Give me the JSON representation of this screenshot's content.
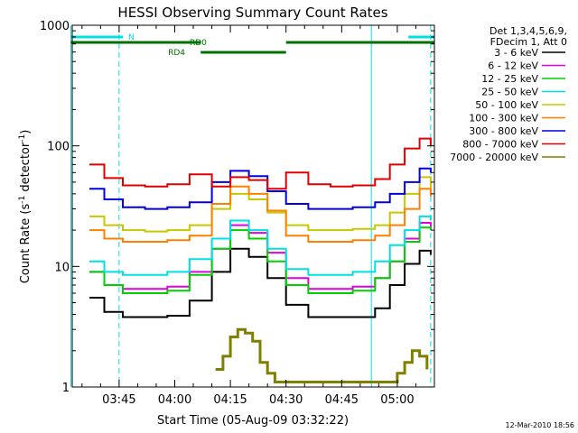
{
  "chart_data": {
    "type": "line",
    "title": "HESSI Observing Summary Count Rates",
    "xlabel": "Start Time (05-Aug-09 03:32:22)",
    "ylabel_main": "Count Rate (s",
    "ylabel_sup1": "-1",
    "ylabel_mid": " detector",
    "ylabel_sup2": "-1",
    "ylabel_end": ")",
    "y_scale": "log",
    "ylim": [
      1,
      1000
    ],
    "xlim": [
      "03:32:22",
      "05:10:00"
    ],
    "x_ticks": [
      "03:45",
      "04:00",
      "04:15",
      "04:30",
      "04:45",
      "05:00"
    ],
    "y_ticks": [
      "1",
      "10",
      "100",
      "1000"
    ],
    "legend_header": [
      "Det 1,3,4,5,6,9,",
      "FDecim 1, Att 0"
    ],
    "legend_position": "right",
    "footer_date": "12-Mar-2010 18:56",
    "flags": [
      {
        "label": "N",
        "color": "#00e0e0",
        "segments": [
          [
            "03:32",
            "03:46"
          ],
          [
            "05:03",
            "05:10"
          ]
        ]
      },
      {
        "label": "RD0",
        "color": "#007000",
        "segments": [
          [
            "03:32",
            "04:07"
          ],
          [
            "04:30",
            "05:10"
          ]
        ]
      },
      {
        "label": "RD4",
        "color": "#007000",
        "segments": [
          [
            "04:07",
            "04:30"
          ]
        ]
      }
    ],
    "night_markers": {
      "solid": [
        "03:32",
        "04:53"
      ],
      "dashed": [
        "03:45",
        "05:09"
      ]
    },
    "series": [
      {
        "name": "3 - 6 keV",
        "color": "#000000",
        "x": [
          "03:37",
          "03:41",
          "03:46",
          "03:52",
          "03:58",
          "04:04",
          "04:10",
          "04:15",
          "04:20",
          "04:25",
          "04:30",
          "04:36",
          "04:42",
          "04:48",
          "04:54",
          "04:58",
          "05:02",
          "05:06",
          "05:09"
        ],
        "y": [
          5.5,
          4.2,
          3.8,
          3.8,
          3.9,
          5.2,
          9.0,
          14.0,
          12.0,
          8.0,
          4.8,
          3.8,
          3.8,
          3.8,
          4.5,
          7.0,
          10.5,
          13.5,
          12.5
        ]
      },
      {
        "name": "6 - 12 keV",
        "color": "#e000e0",
        "x": [
          "03:37",
          "03:41",
          "03:46",
          "03:52",
          "03:58",
          "04:04",
          "04:10",
          "04:15",
          "04:20",
          "04:25",
          "04:30",
          "04:36",
          "04:42",
          "04:48",
          "04:54",
          "04:58",
          "05:02",
          "05:06",
          "05:09"
        ],
        "y": [
          9,
          7,
          6.5,
          6.5,
          6.8,
          9,
          14,
          22,
          19,
          13,
          8,
          6.5,
          6.5,
          6.8,
          8,
          11,
          17,
          23,
          21
        ]
      },
      {
        "name": "12 - 25 keV",
        "color": "#00d000",
        "x": [
          "03:37",
          "03:41",
          "03:46",
          "03:52",
          "03:58",
          "04:04",
          "04:10",
          "04:15",
          "04:20",
          "04:25",
          "04:30",
          "04:36",
          "04:42",
          "04:48",
          "04:54",
          "04:58",
          "05:02",
          "05:06",
          "05:09"
        ],
        "y": [
          9,
          7,
          6,
          6,
          6.3,
          8.5,
          14,
          20,
          17,
          11,
          7,
          6,
          6,
          6.3,
          8,
          11,
          16,
          21,
          20
        ]
      },
      {
        "name": "25 - 50 keV",
        "color": "#00e0e0",
        "x": [
          "03:37",
          "03:41",
          "03:46",
          "03:52",
          "03:58",
          "04:04",
          "04:10",
          "04:15",
          "04:20",
          "04:25",
          "04:30",
          "04:36",
          "04:42",
          "04:48",
          "04:54",
          "04:58",
          "05:02",
          "05:06",
          "05:09"
        ],
        "y": [
          11,
          9,
          8.5,
          8.5,
          9,
          11.5,
          17,
          24,
          20,
          14,
          9.5,
          8.5,
          8.5,
          9,
          11,
          15,
          20,
          26,
          24
        ]
      },
      {
        "name": "50 - 100 keV",
        "color": "#c8c800",
        "x": [
          "03:37",
          "03:41",
          "03:46",
          "03:52",
          "03:58",
          "04:04",
          "04:10",
          "04:15",
          "04:20",
          "04:25",
          "04:30",
          "04:36",
          "04:42",
          "04:48",
          "04:54",
          "04:58",
          "05:02",
          "05:06",
          "05:09"
        ],
        "y": [
          26,
          22,
          20,
          19.5,
          20,
          22,
          30,
          40,
          36,
          28,
          22,
          20,
          20,
          20.5,
          22,
          28,
          40,
          55,
          45
        ]
      },
      {
        "name": "100 - 300 keV",
        "color": "#ff8000",
        "x": [
          "03:37",
          "03:41",
          "03:46",
          "03:52",
          "03:58",
          "04:04",
          "04:10",
          "04:15",
          "04:20",
          "04:25",
          "04:30",
          "04:36",
          "04:42",
          "04:48",
          "04:54",
          "04:58",
          "05:02",
          "05:06",
          "05:09"
        ],
        "y": [
          20,
          17,
          16,
          16,
          16.5,
          18,
          33,
          46,
          40,
          29,
          18,
          16,
          16,
          16.5,
          18,
          22,
          30,
          44,
          38
        ]
      },
      {
        "name": "300 - 800 keV",
        "color": "#0000e0",
        "x": [
          "03:37",
          "03:41",
          "03:46",
          "03:52",
          "03:58",
          "04:04",
          "04:10",
          "04:15",
          "04:20",
          "04:25",
          "04:30",
          "04:36",
          "04:42",
          "04:48",
          "04:54",
          "04:58",
          "05:02",
          "05:06",
          "05:09"
        ],
        "y": [
          44,
          36,
          31,
          30,
          31,
          34,
          50,
          62,
          56,
          42,
          33,
          30,
          30,
          31,
          34,
          40,
          50,
          65,
          60
        ]
      },
      {
        "name": "800 - 7000 keV",
        "color": "#e00000",
        "x": [
          "03:37",
          "03:41",
          "03:46",
          "03:52",
          "03:58",
          "04:04",
          "04:10",
          "04:15",
          "04:20",
          "04:25",
          "04:30",
          "04:36",
          "04:42",
          "04:48",
          "04:54",
          "04:58",
          "05:02",
          "05:06",
          "05:09"
        ],
        "y": [
          70,
          54,
          47,
          46,
          48,
          58,
          46,
          55,
          52,
          44,
          60,
          48,
          46,
          47,
          53,
          70,
          95,
          115,
          100
        ]
      },
      {
        "name": "7000 - 20000 keV",
        "color": "#808000",
        "x": [
          "04:11",
          "04:13",
          "04:15",
          "04:17",
          "04:19",
          "04:21",
          "04:23",
          "04:25",
          "04:27",
          "05:00",
          "05:02",
          "05:04",
          "05:06",
          "05:08"
        ],
        "y": [
          1.4,
          1.8,
          2.6,
          3.0,
          2.8,
          2.4,
          1.6,
          1.3,
          1.1,
          1.3,
          1.6,
          2.0,
          1.8,
          1.4
        ]
      }
    ]
  }
}
